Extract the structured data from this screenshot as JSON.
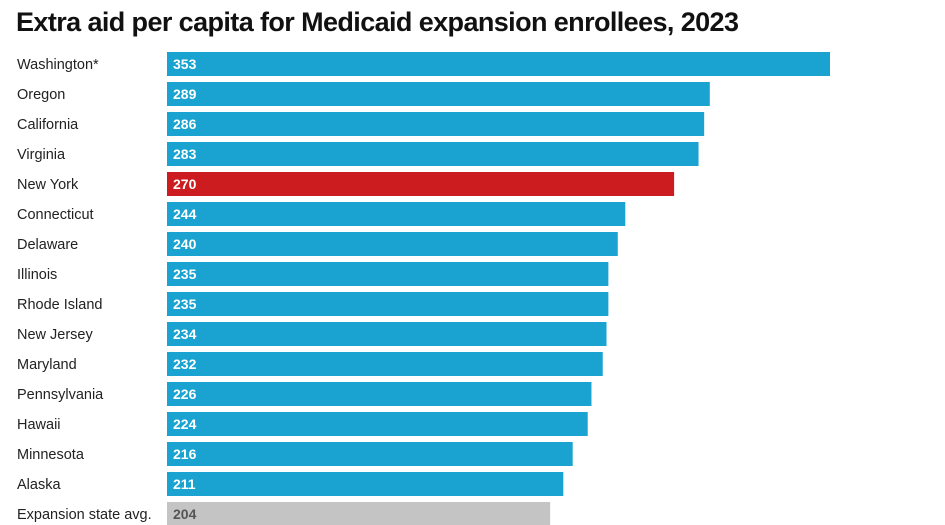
{
  "chart_data": {
    "type": "bar",
    "orientation": "horizontal",
    "title": "Extra aid per capita for Medicaid expansion enrollees, 2023",
    "xlabel": "",
    "ylabel": "",
    "xlim": [
      0,
      353
    ],
    "grid": false,
    "legend": "none",
    "categories": [
      "Washington*",
      "Oregon",
      "California",
      "Virginia",
      "New York",
      "Connecticut",
      "Delaware",
      "Illinois",
      "Rhode Island",
      "New Jersey",
      "Maryland",
      "Pennsylvania",
      "Hawaii",
      "Minnesota",
      "Alaska",
      "Expansion state avg."
    ],
    "values": [
      353,
      289,
      286,
      283,
      270,
      244,
      240,
      235,
      235,
      234,
      232,
      226,
      224,
      216,
      211,
      204
    ],
    "value_labels": [
      "353",
      "289",
      "286",
      "283",
      "270",
      "244",
      "240",
      "235",
      "235",
      "234",
      "232",
      "226",
      "224",
      "216",
      "211",
      "204"
    ],
    "colors": {
      "default": "#1aa3d0",
      "highlight": "#cc1c1f",
      "average": "#c4c4c4",
      "label_on_dark": "#ffffff",
      "label_on_light": "#555555"
    },
    "highlight_category": "New York",
    "average_category": "Expansion state avg."
  }
}
